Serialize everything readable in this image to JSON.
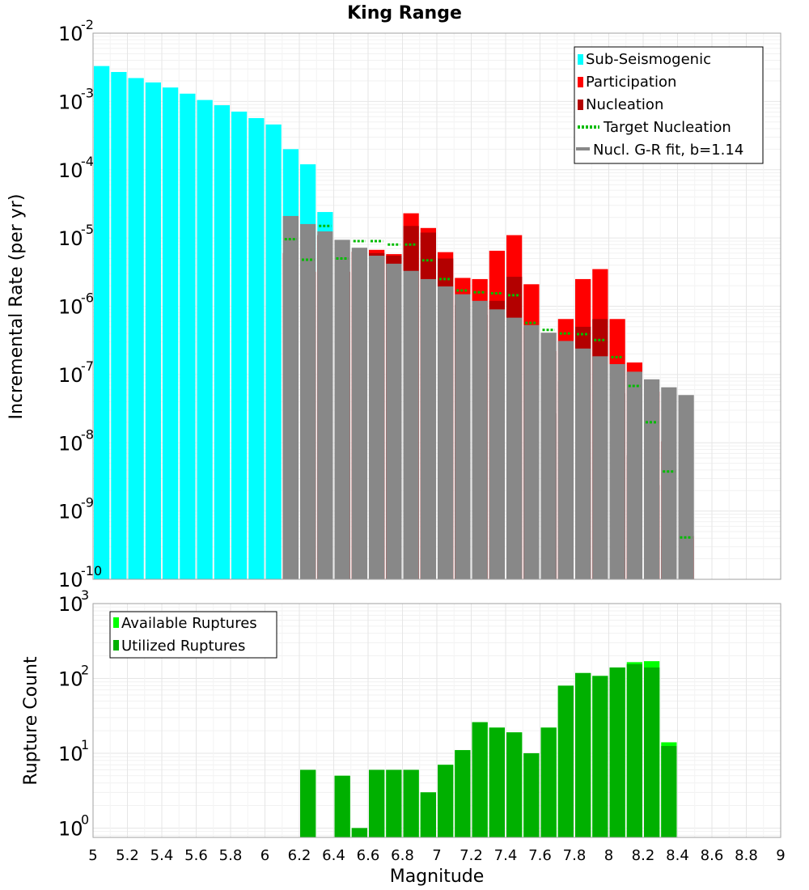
{
  "title": "King Range",
  "chart_data": [
    {
      "type": "bar",
      "yscale": "log",
      "xlabel": "",
      "ylabel": "Incremental Rate (per yr)",
      "xlim": [
        5,
        9
      ],
      "ylim": [
        1e-10,
        0.01
      ],
      "ytick_exponents": [
        "-2",
        "-3",
        "-4",
        "-5",
        "-6",
        "-7",
        "-8",
        "-9",
        "-10"
      ],
      "ytick_base": "10",
      "grid": true,
      "legend_position": "top-right",
      "legend": [
        {
          "label": "Sub-Seismogenic",
          "color": "#00ffff",
          "style": "bar"
        },
        {
          "label": "Participation",
          "color": "#ff0000",
          "style": "bar"
        },
        {
          "label": "Nucleation",
          "color": "#b30000",
          "style": "bar"
        },
        {
          "label": "Target Nucleation",
          "color": "#00bb00",
          "style": "dotted"
        },
        {
          "label": "Nucl. G-R fit, b=1.14",
          "color": "#888888",
          "style": "line"
        }
      ],
      "series": [
        {
          "name": "Sub-Seismogenic",
          "color": "#00ffff",
          "x": [
            5.05,
            5.15,
            5.25,
            5.35,
            5.45,
            5.55,
            5.65,
            5.75,
            5.85,
            5.95,
            6.05,
            6.15,
            6.25,
            6.35
          ],
          "values": [
            0.0033,
            0.0027,
            0.0022,
            0.0019,
            0.0016,
            0.0013,
            0.00105,
            0.00088,
            0.00071,
            0.00057,
            0.00046,
            0.0002,
            0.00012,
            2.4e-05
          ]
        },
        {
          "name": "Participation",
          "color": "#ff0000",
          "x": [
            6.15,
            6.25,
            6.35,
            6.45,
            6.55,
            6.65,
            6.75,
            6.85,
            6.95,
            7.05,
            7.15,
            7.25,
            7.35,
            7.45,
            7.55,
            7.65,
            7.75,
            7.85,
            7.95,
            8.05,
            8.15,
            8.25,
            8.35,
            8.45
          ],
          "values": [
            6e-06,
            3.2e-06,
            1.1e-05,
            3.2e-06,
            6.3e-06,
            6.7e-06,
            5.8e-06,
            2.3e-05,
            1.4e-05,
            6.2e-06,
            2.6e-06,
            2.5e-06,
            6.5e-06,
            1.1e-05,
            2.1e-06,
            2.2e-07,
            6.5e-07,
            2.5e-06,
            3.5e-06,
            6.5e-07,
            1.5e-07,
            5.6e-08,
            1.05e-08,
            4.3e-10
          ]
        },
        {
          "name": "Nucleation",
          "color": "#b30000",
          "x": [
            6.15,
            6.25,
            6.35,
            6.45,
            6.55,
            6.65,
            6.75,
            6.85,
            6.95,
            7.05,
            7.15,
            7.25,
            7.35,
            7.45,
            7.55,
            7.65,
            7.75,
            7.85,
            7.95,
            8.05,
            8.15,
            8.25,
            8.35
          ],
          "values": [
            6e-06,
            3.2e-06,
            1.1e-05,
            3.2e-06,
            6.3e-06,
            6e-06,
            5.5e-06,
            1.5e-05,
            1.2e-05,
            5e-06,
            1.05e-06,
            7.5e-07,
            1.2e-06,
            2.7e-06,
            4.9e-07,
            2.7e-08,
            7.9e-08,
            5e-07,
            6.5e-07,
            5.3e-08,
            6.6e-09,
            2.4e-09,
            3.8e-10
          ]
        },
        {
          "name": "Target Nucleation",
          "color": "#00bb00",
          "x": [
            6.15,
            6.25,
            6.35,
            6.45,
            6.55,
            6.65,
            6.75,
            6.85,
            6.95,
            7.05,
            7.15,
            7.25,
            7.35,
            7.45,
            7.55,
            7.65,
            7.75,
            7.85,
            7.95,
            8.05,
            8.15,
            8.25,
            8.35,
            8.45
          ],
          "values": [
            9.6e-06,
            4.8e-06,
            1.5e-05,
            5e-06,
            9e-06,
            9e-06,
            8e-06,
            8e-06,
            4.7e-06,
            2.5e-06,
            1.7e-06,
            1.6e-06,
            1.55e-06,
            1.45e-06,
            5.7e-07,
            4.5e-07,
            4e-07,
            3.9e-07,
            3.2e-07,
            1.8e-07,
            6.8e-08,
            2e-08,
            3.8e-09,
            4.1e-10
          ]
        },
        {
          "name": "Nucl. G-R fit, b=1.14",
          "color": "#888888",
          "x": [
            6.15,
            6.25,
            6.35,
            6.45,
            6.55,
            6.65,
            6.75,
            6.85,
            6.95,
            7.05,
            7.15,
            7.25,
            7.35,
            7.45,
            7.55,
            7.65,
            7.75,
            7.85,
            7.95,
            8.05,
            8.15,
            8.25,
            8.35,
            8.45
          ],
          "values": [
            2.1e-05,
            1.6e-05,
            1.25e-05,
            9.4e-06,
            7.2e-06,
            5.5e-06,
            4.2e-06,
            3.3e-06,
            2.5e-06,
            1.95e-06,
            1.5e-06,
            1.2e-06,
            9e-07,
            6.8e-07,
            5.3e-07,
            4.1e-07,
            3.1e-07,
            2.4e-07,
            1.85e-07,
            1.42e-07,
            1.1e-07,
            8.5e-08,
            6.5e-08,
            5e-08
          ]
        }
      ]
    },
    {
      "type": "bar",
      "yscale": "log",
      "xlabel": "Magnitude",
      "ylabel": "Rupture Count",
      "xlim": [
        5,
        9
      ],
      "ylim": [
        0.75,
        1000
      ],
      "ytick_exponents": [
        "3",
        "2",
        "1",
        "0"
      ],
      "ytick_base": "10",
      "xtick_labels": [
        "5",
        "5.2",
        "5.4",
        "5.6",
        "5.8",
        "6",
        "6.2",
        "6.4",
        "6.6",
        "6.8",
        "7",
        "7.2",
        "7.4",
        "7.6",
        "7.8",
        "8",
        "8.2",
        "8.4",
        "8.6",
        "8.8",
        "9"
      ],
      "grid": true,
      "legend_position": "top-left",
      "legend": [
        {
          "label": "Available Ruptures",
          "color": "#00ff00",
          "style": "bar"
        },
        {
          "label": "Utilized Ruptures",
          "color": "#00b000",
          "style": "bar"
        }
      ],
      "series": [
        {
          "name": "Available Ruptures",
          "color": "#00ff00",
          "x": [
            6.25,
            6.45,
            6.55,
            6.65,
            6.75,
            6.85,
            6.95,
            7.05,
            7.15,
            7.25,
            7.35,
            7.45,
            7.55,
            7.65,
            7.75,
            7.85,
            7.95,
            8.05,
            8.15,
            8.25,
            8.35
          ],
          "values": [
            6,
            5,
            1,
            6,
            6,
            6,
            3,
            7,
            11,
            26,
            22,
            19,
            10,
            22,
            80,
            118,
            108,
            140,
            165,
            170,
            14
          ]
        },
        {
          "name": "Utilized Ruptures",
          "color": "#00b000",
          "x": [
            6.25,
            6.45,
            6.55,
            6.65,
            6.75,
            6.85,
            6.95,
            7.05,
            7.15,
            7.25,
            7.35,
            7.45,
            7.55,
            7.65,
            7.75,
            7.85,
            7.95,
            8.05,
            8.15,
            8.25,
            8.35
          ],
          "values": [
            6,
            5,
            1,
            6,
            6,
            6,
            3,
            7,
            11,
            26,
            22,
            19,
            10,
            22,
            80,
            118,
            108,
            140,
            155,
            140,
            12.5
          ]
        }
      ]
    }
  ]
}
